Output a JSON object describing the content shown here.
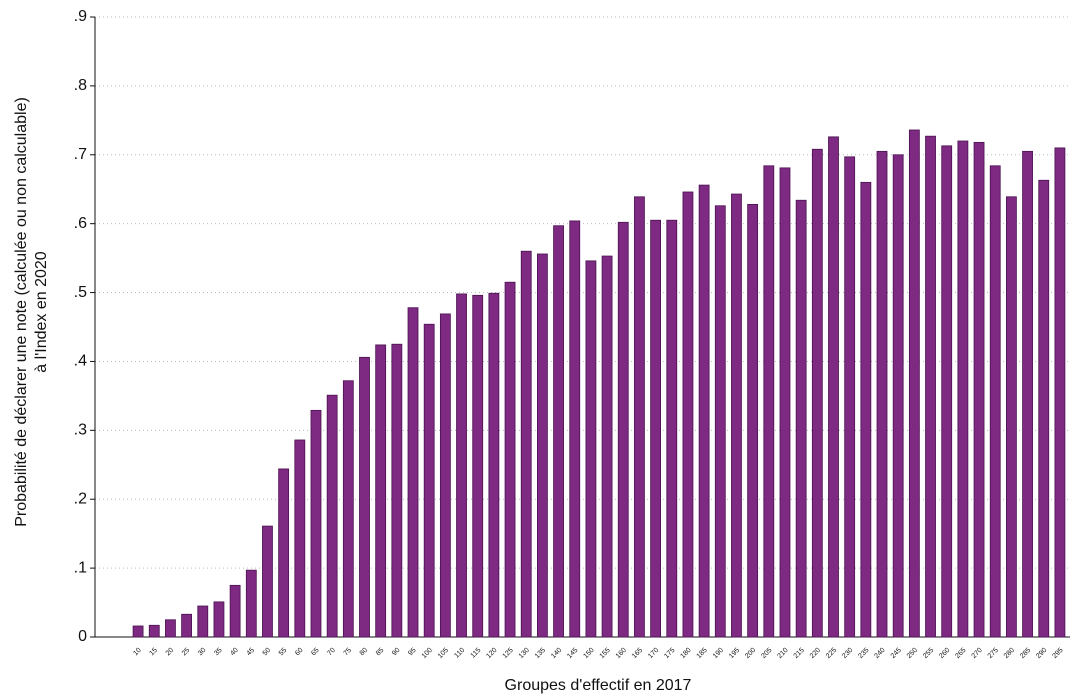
{
  "chart_data": {
    "type": "bar",
    "ylabel": [
      "Probabilité de déclarer une note (calculée ou non calculable)",
      "à l'Index en 2020"
    ],
    "xlabel": "Groupes d'effectif en 2017",
    "categories": [
      "10",
      "15",
      "20",
      "25",
      "30",
      "35",
      "40",
      "45",
      "50",
      "55",
      "60",
      "65",
      "70",
      "75",
      "80",
      "85",
      "90",
      "95",
      "100",
      "105",
      "110",
      "115",
      "120",
      "125",
      "130",
      "135",
      "140",
      "145",
      "150",
      "155",
      "160",
      "165",
      "170",
      "175",
      "180",
      "185",
      "190",
      "195",
      "200",
      "205",
      "210",
      "215",
      "220",
      "225",
      "230",
      "235",
      "240",
      "245",
      "250",
      "255",
      "260",
      "265",
      "270",
      "275",
      "280",
      "285",
      "290",
      "295"
    ],
    "values": [
      0.016,
      0.017,
      0.025,
      0.033,
      0.045,
      0.051,
      0.075,
      0.097,
      0.161,
      0.244,
      0.286,
      0.329,
      0.351,
      0.372,
      0.406,
      0.424,
      0.425,
      0.478,
      0.454,
      0.469,
      0.498,
      0.496,
      0.499,
      0.515,
      0.56,
      0.556,
      0.597,
      0.604,
      0.546,
      0.553,
      0.602,
      0.639,
      0.605,
      0.605,
      0.646,
      0.656,
      0.626,
      0.643,
      0.628,
      0.684,
      0.681,
      0.634,
      0.708,
      0.726,
      0.697,
      0.66,
      0.705,
      0.7,
      0.736,
      0.727,
      0.713,
      0.72,
      0.718,
      0.684,
      0.639,
      0.705,
      0.663,
      0.71
    ],
    "color": "#7e2a82",
    "ylim": [
      0,
      0.9
    ],
    "yticks": [
      0,
      {
        "value": 0.1,
        "label": ".1"
      },
      {
        "value": 0.2,
        "label": ".2"
      },
      {
        "value": 0.3,
        "label": ".3"
      },
      {
        "value": 0.4,
        "label": ".4"
      },
      {
        "value": 0.5,
        "label": ".5"
      },
      {
        "value": 0.6,
        "label": ".6"
      },
      {
        "value": 0.7,
        "label": ".7"
      },
      {
        "value": 0.8,
        "label": ".8"
      },
      {
        "value": 0.9,
        "label": ".9"
      }
    ],
    "grid": true
  }
}
